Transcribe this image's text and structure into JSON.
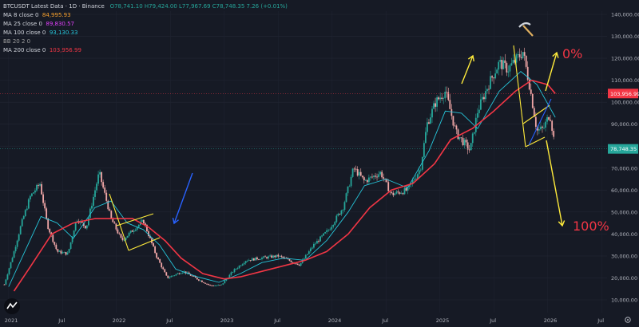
{
  "header": {
    "symbol_line": "BTCUSDT Latest Data · 1D · Binance",
    "ohlc": "O78,741.10 H79,424.00 L77,967.69 C78,748.35 7.26 (+0.01%)"
  },
  "indicators": [
    {
      "label": "MA 8 close 0",
      "value": "84,995.93",
      "color": "#f7a02c"
    },
    {
      "label": "MA 25 close 0",
      "value": "89,830.57",
      "color": "#e040fb"
    },
    {
      "label": "MA 100 close 0",
      "value": "93,130.33",
      "color": "#26c6da"
    },
    {
      "label": "BB 20 2 0",
      "value": "",
      "color": "#9e9e9e"
    },
    {
      "label": "MA 200 close 0",
      "value": "103,956.99",
      "color": "#f23645"
    }
  ],
  "colors": {
    "background": "#161a25",
    "up_candle": "#26a69a",
    "down_candle": "#f0a6a6",
    "ma200": "#f23645",
    "ma100": "#26c6da",
    "annotation_yellow": "#ffeb3b",
    "annotation_blue": "#2962ff",
    "annotation_red": "#f23645"
  },
  "chart_data": {
    "type": "candlestick",
    "x_axis_labels": [
      "2021",
      "Jul",
      "2022",
      "Jul",
      "2023",
      "Jul",
      "2024",
      "Jul",
      "2025",
      "Jul",
      "2026",
      "Jul"
    ],
    "y_axis_labels": [
      "140,000.00",
      "130,000.00",
      "120,000.00",
      "110,000.00",
      "100,000.00",
      "90,000.00",
      "80,000.00",
      "70,000.00",
      "60,000.00",
      "50,000.00",
      "40,000.00",
      "30,000.00",
      "20,000.00",
      "10,000.00"
    ],
    "y_axis_values": [
      140000,
      130000,
      120000,
      110000,
      100000,
      90000,
      80000,
      70000,
      60000,
      50000,
      40000,
      30000,
      20000,
      10000
    ],
    "ylim": [
      6000,
      145000
    ],
    "price_path": [
      {
        "t": 2020.96,
        "p": 17000
      },
      {
        "t": 2021.05,
        "p": 32000
      },
      {
        "t": 2021.12,
        "p": 45000
      },
      {
        "t": 2021.2,
        "p": 57000
      },
      {
        "t": 2021.29,
        "p": 63000
      },
      {
        "t": 2021.36,
        "p": 44000
      },
      {
        "t": 2021.45,
        "p": 32000
      },
      {
        "t": 2021.55,
        "p": 31000
      },
      {
        "t": 2021.63,
        "p": 47000
      },
      {
        "t": 2021.72,
        "p": 43000
      },
      {
        "t": 2021.84,
        "p": 68000
      },
      {
        "t": 2021.95,
        "p": 47000
      },
      {
        "t": 2022.05,
        "p": 37000
      },
      {
        "t": 2022.18,
        "p": 43000
      },
      {
        "t": 2022.25,
        "p": 46000
      },
      {
        "t": 2022.37,
        "p": 30000
      },
      {
        "t": 2022.47,
        "p": 20000
      },
      {
        "t": 2022.62,
        "p": 23000
      },
      {
        "t": 2022.75,
        "p": 19500
      },
      {
        "t": 2022.87,
        "p": 16500
      },
      {
        "t": 2022.97,
        "p": 16600
      },
      {
        "t": 2023.08,
        "p": 23000
      },
      {
        "t": 2023.2,
        "p": 28000
      },
      {
        "t": 2023.33,
        "p": 29000
      },
      {
        "t": 2023.5,
        "p": 30000
      },
      {
        "t": 2023.7,
        "p": 26000
      },
      {
        "t": 2023.83,
        "p": 35000
      },
      {
        "t": 2023.97,
        "p": 42000
      },
      {
        "t": 2024.1,
        "p": 52000
      },
      {
        "t": 2024.2,
        "p": 70000
      },
      {
        "t": 2024.3,
        "p": 64000
      },
      {
        "t": 2024.45,
        "p": 68000
      },
      {
        "t": 2024.55,
        "p": 58000
      },
      {
        "t": 2024.7,
        "p": 60000
      },
      {
        "t": 2024.82,
        "p": 70000
      },
      {
        "t": 2024.88,
        "p": 90000
      },
      {
        "t": 2024.96,
        "p": 100000
      },
      {
        "t": 2025.05,
        "p": 105000
      },
      {
        "t": 2025.15,
        "p": 86000
      },
      {
        "t": 2025.28,
        "p": 78000
      },
      {
        "t": 2025.35,
        "p": 96000
      },
      {
        "t": 2025.45,
        "p": 108000
      },
      {
        "t": 2025.55,
        "p": 118000
      },
      {
        "t": 2025.63,
        "p": 115000
      },
      {
        "t": 2025.77,
        "p": 123000
      },
      {
        "t": 2025.83,
        "p": 108000
      },
      {
        "t": 2025.9,
        "p": 87000
      },
      {
        "t": 2025.96,
        "p": 88000
      },
      {
        "t": 2026.02,
        "p": 95000
      },
      {
        "t": 2026.07,
        "p": 78748
      }
    ],
    "ma200_path": [
      {
        "t": 2021.05,
        "p": 14000
      },
      {
        "t": 2021.2,
        "p": 25000
      },
      {
        "t": 2021.4,
        "p": 40000
      },
      {
        "t": 2021.6,
        "p": 45000
      },
      {
        "t": 2021.8,
        "p": 47000
      },
      {
        "t": 2022.0,
        "p": 47000
      },
      {
        "t": 2022.15,
        "p": 47000
      },
      {
        "t": 2022.3,
        "p": 43000
      },
      {
        "t": 2022.45,
        "p": 37000
      },
      {
        "t": 2022.6,
        "p": 29000
      },
      {
        "t": 2022.8,
        "p": 22000
      },
      {
        "t": 2023.0,
        "p": 19500
      },
      {
        "t": 2023.15,
        "p": 20500
      },
      {
        "t": 2023.35,
        "p": 23000
      },
      {
        "t": 2023.55,
        "p": 25500
      },
      {
        "t": 2023.75,
        "p": 28000
      },
      {
        "t": 2023.95,
        "p": 32000
      },
      {
        "t": 2024.15,
        "p": 40000
      },
      {
        "t": 2024.35,
        "p": 52000
      },
      {
        "t": 2024.55,
        "p": 60000
      },
      {
        "t": 2024.75,
        "p": 63000
      },
      {
        "t": 2024.95,
        "p": 72000
      },
      {
        "t": 2025.1,
        "p": 83000
      },
      {
        "t": 2025.3,
        "p": 88000
      },
      {
        "t": 2025.5,
        "p": 96000
      },
      {
        "t": 2025.7,
        "p": 105000
      },
      {
        "t": 2025.85,
        "p": 110000
      },
      {
        "t": 2026.0,
        "p": 108000
      },
      {
        "t": 2026.07,
        "p": 103957
      }
    ],
    "ma100_path": [
      {
        "t": 2021.0,
        "p": 16000
      },
      {
        "t": 2021.15,
        "p": 32000
      },
      {
        "t": 2021.3,
        "p": 48000
      },
      {
        "t": 2021.45,
        "p": 45000
      },
      {
        "t": 2021.6,
        "p": 38000
      },
      {
        "t": 2021.8,
        "p": 52000
      },
      {
        "t": 2021.95,
        "p": 55000
      },
      {
        "t": 2022.1,
        "p": 45000
      },
      {
        "t": 2022.25,
        "p": 42000
      },
      {
        "t": 2022.4,
        "p": 35000
      },
      {
        "t": 2022.55,
        "p": 24000
      },
      {
        "t": 2022.75,
        "p": 20500
      },
      {
        "t": 2022.95,
        "p": 18000
      },
      {
        "t": 2023.15,
        "p": 22000
      },
      {
        "t": 2023.35,
        "p": 27000
      },
      {
        "t": 2023.55,
        "p": 29000
      },
      {
        "t": 2023.75,
        "p": 28000
      },
      {
        "t": 2023.95,
        "p": 37000
      },
      {
        "t": 2024.15,
        "p": 50000
      },
      {
        "t": 2024.3,
        "p": 62000
      },
      {
        "t": 2024.5,
        "p": 65000
      },
      {
        "t": 2024.7,
        "p": 61000
      },
      {
        "t": 2024.9,
        "p": 78000
      },
      {
        "t": 2025.05,
        "p": 96000
      },
      {
        "t": 2025.2,
        "p": 95000
      },
      {
        "t": 2025.35,
        "p": 88000
      },
      {
        "t": 2025.55,
        "p": 105000
      },
      {
        "t": 2025.75,
        "p": 114000
      },
      {
        "t": 2025.9,
        "p": 108000
      },
      {
        "t": 2026.07,
        "p": 93130
      }
    ],
    "current_price_label": "78,748.35",
    "ma200_price_label": "103,956.99"
  },
  "annotations": {
    "zero_pct": "0%",
    "hundred_pct": "100%"
  }
}
